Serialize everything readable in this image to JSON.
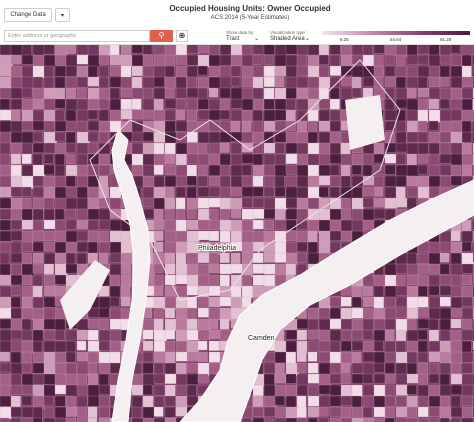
{
  "header": {
    "change_data": "Change Data",
    "title": "Occupied Housing Units: Owner Occupied",
    "subtitle": "ACS 2014 (5-Year Estimates)"
  },
  "toolbar": {
    "search_placeholder": "Enter address or geography",
    "show_data_label": "Show data by:",
    "show_data_value": "Tract",
    "visualization_label": "Visualization type:",
    "visualization_value": "Shaded Area"
  },
  "legend": [
    6.25,
    54.64,
    91.28
  ],
  "places": [
    "Philadelphia",
    "Camden"
  ]
}
